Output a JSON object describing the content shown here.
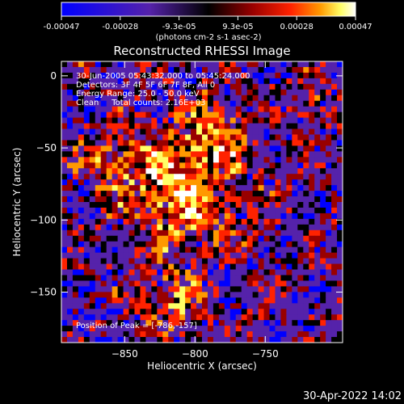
{
  "chart_data": {
    "type": "heatmap",
    "title": "Reconstructed RHESSI Image",
    "xlabel": "Heliocentric X (arcsec)",
    "ylabel": "Heliocentric Y (arcsec)",
    "xlim": [
      -895,
      -695
    ],
    "ylim": [
      -185,
      10
    ],
    "xticks": [
      -850,
      -800,
      -750
    ],
    "yticks": [
      0,
      -50,
      -100,
      -150
    ],
    "annotations": [
      "30-Jun-2005 05:43:32.000 to 05:45:24.000",
      "Detectors: 3F 4F 5F 6F 7F 8F, All 0",
      "Energy Range: 25.0 - 50.0 keV",
      "Clean     Total counts: 2.16E+03"
    ],
    "peak_label": "Position of Peak = [-786,-157]",
    "colorbar": {
      "ticks": [
        "-0.00047",
        "-0.00028",
        "-9.3e-05",
        "9.3e-05",
        "0.00028",
        "0.00047"
      ],
      "units": "(photons cm-2 s-1 asec-2)",
      "range": [
        -0.00047,
        0.00047
      ]
    },
    "colors": [
      "#0000ff",
      "#5522aa",
      "#000000",
      "#990000",
      "#ff2200",
      "#ff9900",
      "#ffff66",
      "#ffffff"
    ]
  },
  "footer": {
    "timestamp": "30-Apr-2022 14:02"
  }
}
